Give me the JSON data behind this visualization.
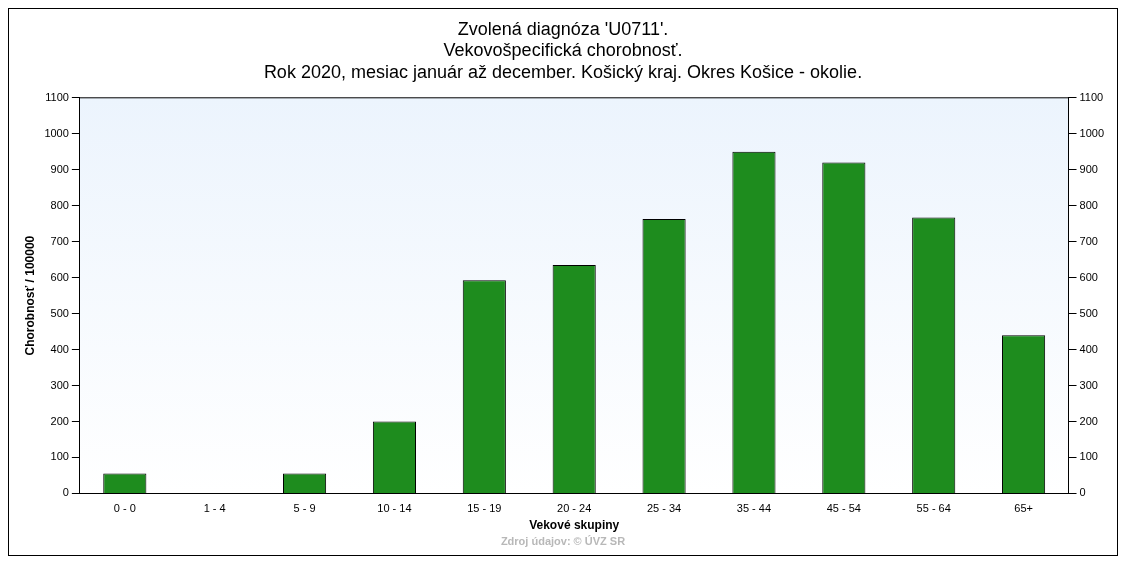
{
  "chart_data": {
    "type": "bar",
    "title": "Zvolená diagnóza 'U0711'.\nVekovošpecifická chorobnosť.\nRok 2020, mesiac január až december. Košický kraj. Okres Košice - okolie.",
    "xlabel": "Vekové skupiny",
    "ylabel": "Chorobnosť / 100000",
    "categories": [
      "0 - 0",
      "1 - 4",
      "5 - 9",
      "10 - 14",
      "15 - 19",
      "20 - 24",
      "25 - 34",
      "35 - 44",
      "45 - 54",
      "55 - 64",
      "65+"
    ],
    "values": [
      55,
      0,
      55,
      200,
      593,
      635,
      763,
      950,
      920,
      767,
      440
    ],
    "color": "#1e8c1e",
    "ylim": [
      0,
      1100
    ],
    "yticks": [
      0,
      100,
      200,
      300,
      400,
      500,
      600,
      700,
      800,
      900,
      1000,
      1100
    ],
    "y2lim": [
      0,
      1100
    ],
    "y2ticks": [
      0,
      100,
      200,
      300,
      400,
      500,
      600,
      700,
      800,
      900,
      1000,
      1100
    ],
    "grid": false,
    "legend": false,
    "annotations": [
      "Zdroj údajov: © ÚVZ SR"
    ]
  }
}
